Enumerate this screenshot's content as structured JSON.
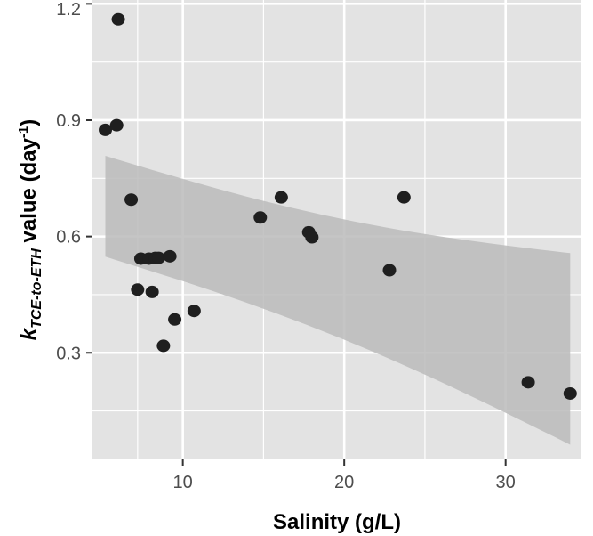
{
  "chart_data": {
    "type": "scatter",
    "x": [
      5.2,
      5.9,
      6.0,
      6.8,
      7.2,
      7.4,
      7.9,
      8.1,
      8.3,
      8.5,
      8.8,
      9.2,
      9.5,
      10.7,
      14.8,
      16.1,
      17.8,
      18.0,
      22.8,
      23.7,
      31.4,
      34.0
    ],
    "y": [
      0.875,
      0.887,
      1.16,
      0.695,
      0.463,
      0.543,
      0.543,
      0.457,
      0.545,
      0.545,
      0.318,
      0.549,
      0.386,
      0.408,
      0.649,
      0.701,
      0.611,
      0.598,
      0.513,
      0.701,
      0.224,
      0.195
    ],
    "xlabel": "Salinity (g/L)",
    "ylabel_parts": {
      "k": "k",
      "subscript": "TCE-to-ETH",
      "middle": " value (day",
      "superscript": "-1",
      "end": ")"
    },
    "x_ticks": [
      10,
      20,
      30
    ],
    "y_ticks": [
      0.3,
      0.6,
      0.9,
      1.2
    ],
    "x_tick_labels": [
      "10",
      "20",
      "30"
    ],
    "y_tick_labels": [
      "0.3",
      "0.6",
      "0.9",
      "1.2"
    ],
    "xlim": [
      4.4,
      34.7
    ],
    "ylim": [
      0.025,
      1.21
    ],
    "grid": true,
    "regression": {
      "x0": 5.2,
      "x1": 34.0,
      "slope": -0.0105,
      "fit_at_x0": 0.68,
      "upper_at_x0": 0.808,
      "lower_at_x0": 0.548,
      "upper_at_x1": 0.557,
      "lower_at_x1": 0.063
    },
    "colors": {
      "panel": "#e3e3e3",
      "grid": "#ffffff",
      "point": "#1f1f1f",
      "band": "#bbbbbb"
    }
  }
}
